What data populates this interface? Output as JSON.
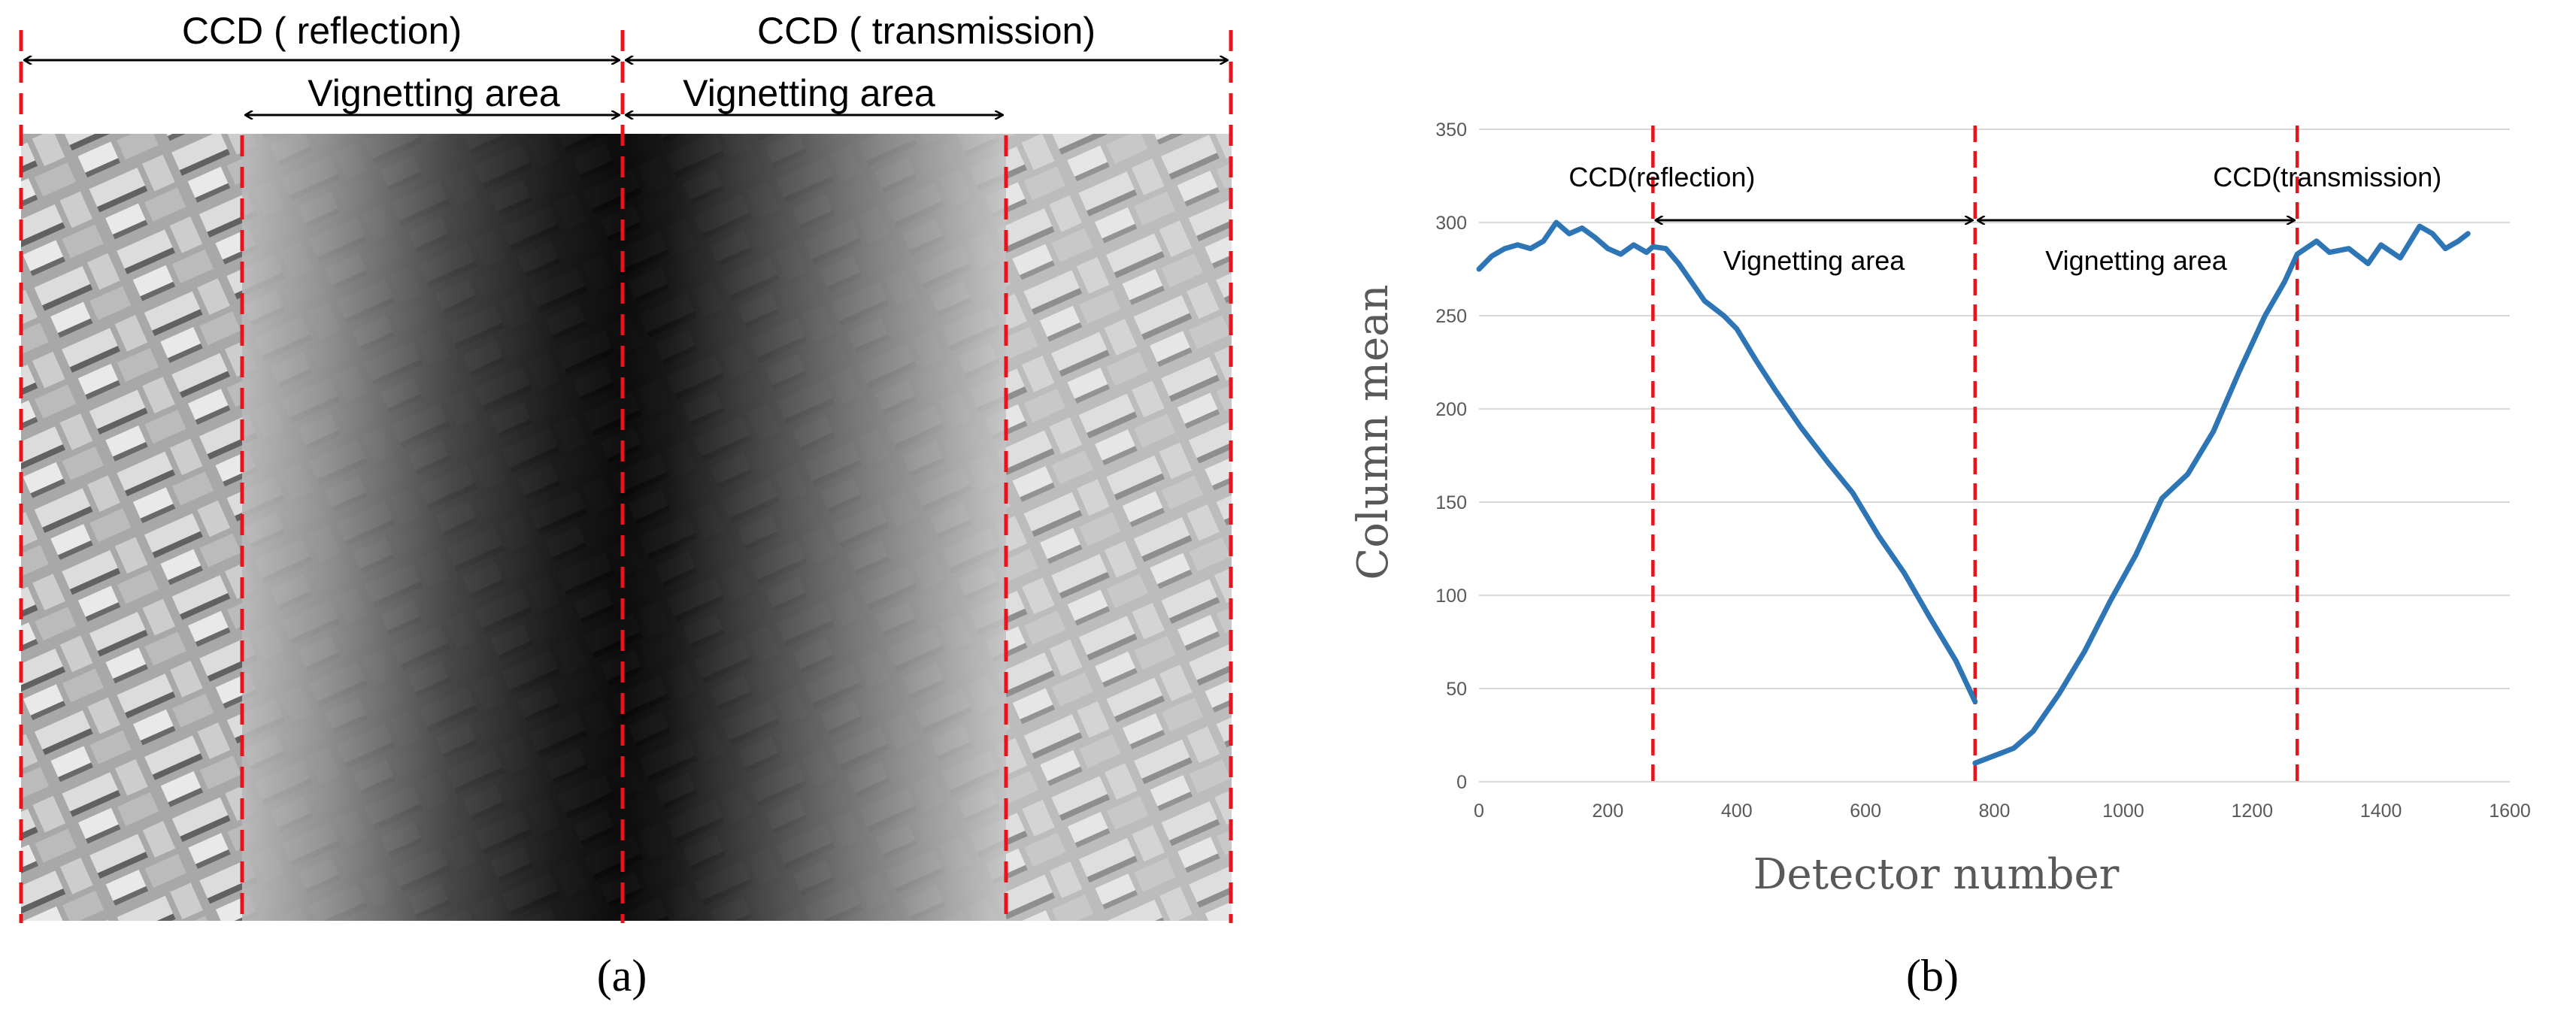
{
  "panel_a": {
    "caption": "(a)",
    "header_left": "CCD ( reflection)",
    "header_right": "CCD ( transmission)",
    "vignetting_left": "Vignetting area",
    "vignetting_right": "Vignetting area"
  },
  "panel_b": {
    "caption": "(b)",
    "annotations": {
      "reflection": "CCD(reflection)",
      "transmission": "CCD(transmission)",
      "vignetting_left": "Vignetting area",
      "vignetting_right": "Vignetting area"
    }
  },
  "colors": {
    "line": "#2e75b6",
    "dashed_marker": "#e8141b",
    "grid": "#d9d9d9"
  },
  "chart_data": {
    "type": "line",
    "title": "",
    "xlabel": "Detector number",
    "ylabel": "Column mean",
    "xlim": [
      0,
      1600
    ],
    "ylim": [
      0,
      350
    ],
    "xticks": [
      0,
      200,
      400,
      600,
      800,
      1000,
      1200,
      1400,
      1600
    ],
    "yticks": [
      0,
      50,
      100,
      150,
      200,
      250,
      300,
      350
    ],
    "grid": "horizontal",
    "legend": "none",
    "vertical_markers": [
      270,
      770,
      1270
    ],
    "series": [
      {
        "x": [
          0,
          20,
          40,
          60,
          80,
          100,
          120,
          140,
          160,
          180,
          200,
          220,
          240,
          260,
          270,
          290,
          310,
          330,
          350,
          380,
          400,
          430,
          460,
          500,
          540,
          580,
          620,
          660,
          700,
          740,
          770
        ],
        "values": [
          275,
          282,
          286,
          288,
          286,
          290,
          300,
          294,
          297,
          292,
          286,
          283,
          288,
          284,
          287,
          286,
          278,
          268,
          258,
          250,
          243,
          226,
          210,
          190,
          172,
          155,
          132,
          112,
          88,
          65,
          43
        ]
      },
      {
        "x": [
          770,
          800,
          830,
          860,
          900,
          940,
          980,
          1020,
          1060,
          1100,
          1140,
          1180,
          1220,
          1250,
          1270,
          1300,
          1320,
          1350,
          1380,
          1400,
          1430,
          1460,
          1480,
          1500,
          1520,
          1535
        ],
        "values": [
          10,
          14,
          18,
          27,
          47,
          70,
          97,
          122,
          152,
          165,
          188,
          220,
          250,
          268,
          283,
          290,
          284,
          286,
          278,
          288,
          281,
          298,
          294,
          286,
          290,
          294
        ]
      }
    ]
  }
}
